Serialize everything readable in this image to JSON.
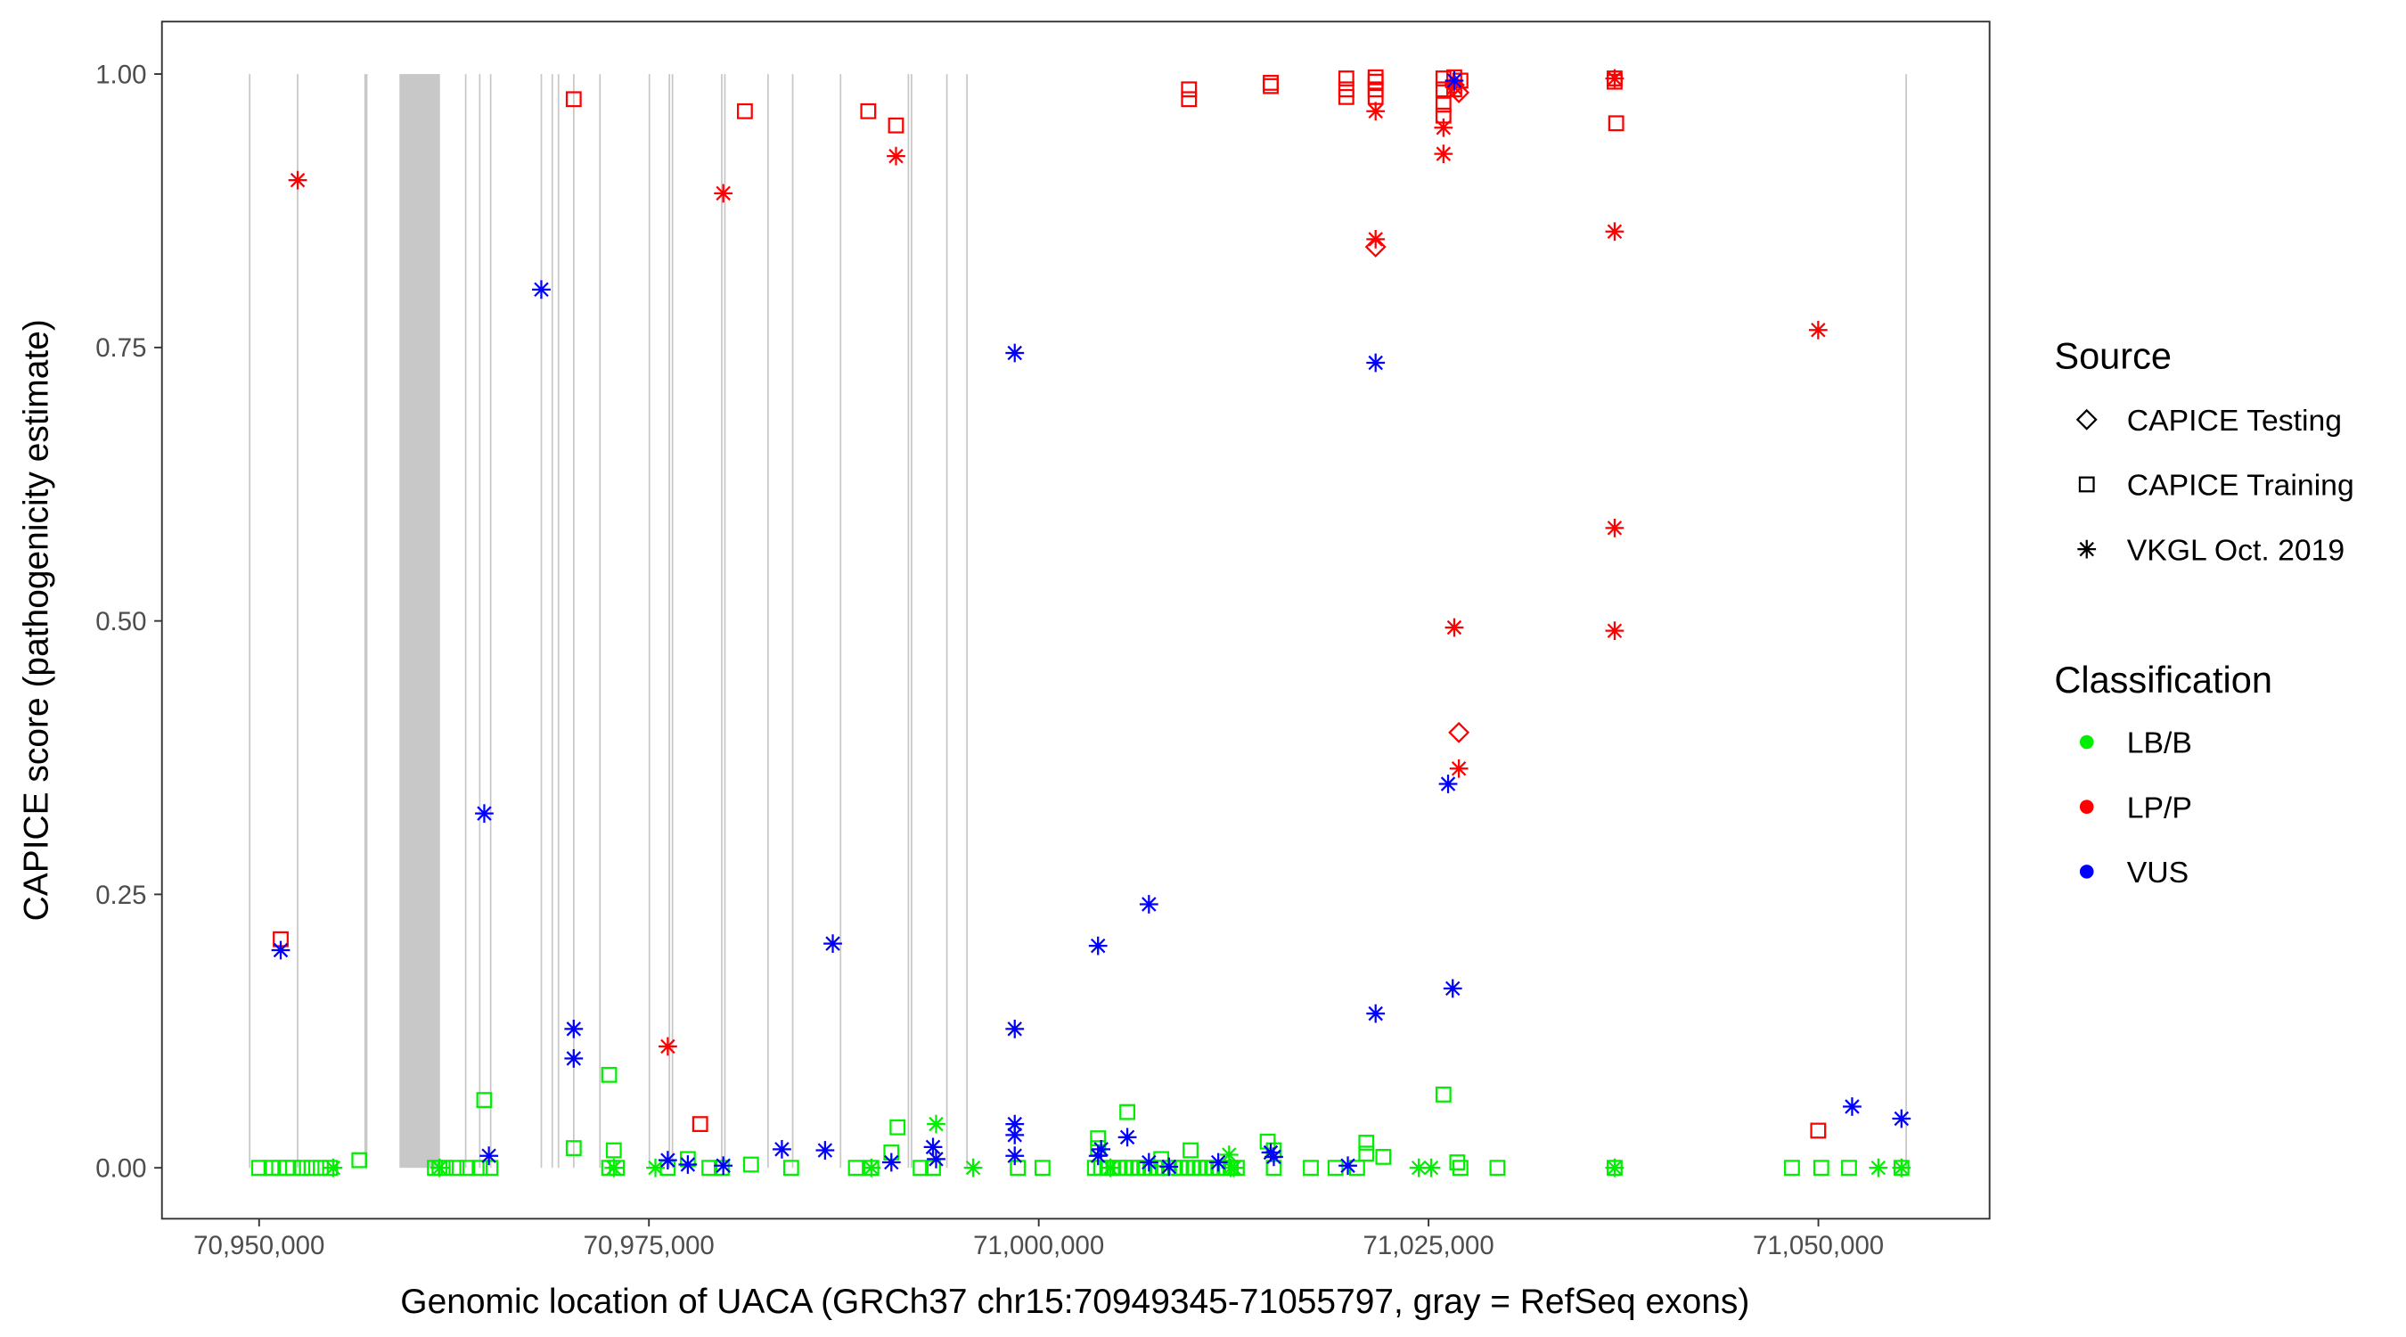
{
  "chart_data": {
    "type": "scatter",
    "xlabel": "Genomic location of UACA (GRCh37 chr15:70949345-71055797, gray = RefSeq exons)",
    "ylabel": "CAPICE score (pathogenicity estimate)",
    "xlim": [
      70943700,
      71061000
    ],
    "ylim": [
      -0.046,
      1.05
    ],
    "x_ticks": [
      70950000,
      70975000,
      71000000,
      71025000,
      71050000
    ],
    "x_tick_labels": [
      "70,950,000",
      "70,975,000",
      "71,000,000",
      "71,025,000",
      "71,050,000"
    ],
    "y_ticks": [
      0,
      0.25,
      0.5,
      0.75,
      1.0
    ],
    "y_tick_labels": [
      "0.00",
      "0.25",
      "0.50",
      "0.75",
      "1.00"
    ],
    "grid": false,
    "legend_placement": "right",
    "legend": {
      "source_title": "Source",
      "sources": [
        {
          "code": "T",
          "label": "CAPICE Testing",
          "shape": "diamond"
        },
        {
          "code": "R",
          "label": "CAPICE Training",
          "shape": "square"
        },
        {
          "code": "V",
          "label": "VKGL Oct. 2019",
          "shape": "asterisk"
        }
      ],
      "class_title": "Classification",
      "classes": [
        {
          "code": "B",
          "label": "LB/B",
          "color": "#00ee00"
        },
        {
          "code": "P",
          "label": "LP/P",
          "color": "#ff0000"
        },
        {
          "code": "U",
          "label": "VUS",
          "color": "#0000ff"
        }
      ]
    },
    "exons": [
      [
        70949345,
        70949445
      ],
      [
        70952420,
        70952520
      ],
      [
        70956750,
        70956950
      ],
      [
        70959000,
        70961600
      ],
      [
        70963200,
        70963300
      ],
      [
        70964100,
        70964200
      ],
      [
        70964800,
        70964900
      ],
      [
        70968050,
        70968150
      ],
      [
        70968750,
        70968850
      ],
      [
        70969150,
        70969250
      ],
      [
        70970130,
        70970230
      ],
      [
        70971810,
        70971910
      ],
      [
        70974980,
        70975080
      ],
      [
        70976260,
        70976360
      ],
      [
        70976460,
        70976560
      ],
      [
        70979620,
        70979720
      ],
      [
        70979820,
        70979920
      ],
      [
        70982590,
        70982690
      ],
      [
        70984170,
        70984270
      ],
      [
        70987240,
        70987340
      ],
      [
        70991590,
        70991690
      ],
      [
        70991790,
        70991890
      ],
      [
        70994060,
        70994160
      ],
      [
        70995350,
        70995450
      ],
      [
        71055580,
        71055680
      ]
    ],
    "points": [
      [
        70950000,
        0,
        "R",
        "B"
      ],
      [
        70950791,
        0,
        "R",
        "B"
      ],
      [
        70951286,
        0,
        "R",
        "B"
      ],
      [
        70951780,
        0,
        "R",
        "B"
      ],
      [
        70952176,
        0,
        "R",
        "B"
      ],
      [
        70952769,
        0,
        "R",
        "B"
      ],
      [
        70953363,
        0,
        "R",
        "B"
      ],
      [
        70953956,
        0,
        "R",
        "B"
      ],
      [
        70954549,
        0,
        "R",
        "B"
      ],
      [
        70954747,
        0,
        "V",
        "B"
      ],
      [
        70956429,
        0.007,
        "R",
        "B"
      ],
      [
        70961275,
        0,
        "R",
        "B"
      ],
      [
        70961571,
        0,
        "R",
        "B"
      ],
      [
        70961571,
        0,
        "V",
        "B"
      ],
      [
        70961967,
        0,
        "R",
        "B"
      ],
      [
        70962659,
        0,
        "R",
        "B"
      ],
      [
        70963352,
        0,
        "R",
        "B"
      ],
      [
        70964143,
        0,
        "R",
        "B"
      ],
      [
        70964835,
        0,
        "R",
        "B"
      ],
      [
        70964440,
        0.062,
        "R",
        "B"
      ],
      [
        70970176,
        0.018,
        "R",
        "B"
      ],
      [
        70972450,
        0.085,
        "R",
        "B"
      ],
      [
        70972747,
        0.016,
        "R",
        "B"
      ],
      [
        70972450,
        0,
        "R",
        "B"
      ],
      [
        70972945,
        0,
        "R",
        "B"
      ],
      [
        70972747,
        0,
        "V",
        "B"
      ],
      [
        70975417,
        0,
        "V",
        "B"
      ],
      [
        70976209,
        0,
        "R",
        "B"
      ],
      [
        70977494,
        0.008,
        "R",
        "B"
      ],
      [
        70978879,
        0,
        "R",
        "B"
      ],
      [
        70979670,
        0,
        "R",
        "B"
      ],
      [
        70981549,
        0.003,
        "R",
        "B"
      ],
      [
        70984121,
        0,
        "R",
        "B"
      ],
      [
        70988274,
        0,
        "R",
        "B"
      ],
      [
        70989263,
        0,
        "R",
        "B"
      ],
      [
        70989263,
        0,
        "V",
        "B"
      ],
      [
        70990549,
        0.014,
        "R",
        "B"
      ],
      [
        70990945,
        0.037,
        "R",
        "B"
      ],
      [
        70993417,
        0.04,
        "V",
        "B"
      ],
      [
        70995791,
        0,
        "V",
        "B"
      ],
      [
        70992428,
        0,
        "R",
        "B"
      ],
      [
        70993219,
        0,
        "R",
        "B"
      ],
      [
        70998659,
        0,
        "R",
        "B"
      ],
      [
        71000241,
        0,
        "R",
        "B"
      ],
      [
        71003604,
        0,
        "R",
        "B"
      ],
      [
        71004000,
        0,
        "R",
        "B"
      ],
      [
        71004396,
        0,
        "R",
        "B"
      ],
      [
        71004791,
        0,
        "R",
        "B"
      ],
      [
        71005187,
        0,
        "R",
        "B"
      ],
      [
        71005582,
        0,
        "R",
        "B"
      ],
      [
        71005978,
        0,
        "R",
        "B"
      ],
      [
        71006374,
        0,
        "R",
        "B"
      ],
      [
        71006769,
        0,
        "R",
        "B"
      ],
      [
        71007165,
        0,
        "R",
        "B"
      ],
      [
        71007560,
        0,
        "R",
        "B"
      ],
      [
        71007956,
        0,
        "R",
        "B"
      ],
      [
        71008352,
        0,
        "R",
        "B"
      ],
      [
        71008747,
        0,
        "R",
        "B"
      ],
      [
        71009143,
        0,
        "R",
        "B"
      ],
      [
        71009538,
        0,
        "R",
        "B"
      ],
      [
        71009934,
        0,
        "R",
        "B"
      ],
      [
        71010330,
        0,
        "R",
        "B"
      ],
      [
        71010725,
        0,
        "R",
        "B"
      ],
      [
        71011121,
        0,
        "R",
        "B"
      ],
      [
        71011516,
        0,
        "R",
        "B"
      ],
      [
        71011912,
        0,
        "R",
        "B"
      ],
      [
        71012308,
        0,
        "R",
        "B"
      ],
      [
        71012703,
        0,
        "R",
        "B"
      ],
      [
        71003802,
        0.027,
        "R",
        "B"
      ],
      [
        71003802,
        0.018,
        "R",
        "B"
      ],
      [
        71005681,
        0.051,
        "R",
        "B"
      ],
      [
        71009736,
        0.016,
        "R",
        "B"
      ],
      [
        71007858,
        0.008,
        "R",
        "B"
      ],
      [
        71004593,
        0,
        "V",
        "B"
      ],
      [
        71012308,
        0,
        "V",
        "B"
      ],
      [
        71012505,
        0,
        "V",
        "B"
      ],
      [
        71012209,
        0.012,
        "V",
        "B"
      ],
      [
        71014681,
        0.024,
        "R",
        "B"
      ],
      [
        71015076,
        0.016,
        "R",
        "B"
      ],
      [
        71015076,
        0,
        "R",
        "B"
      ],
      [
        71017450,
        0,
        "R",
        "B"
      ],
      [
        71019032,
        0,
        "R",
        "B"
      ],
      [
        71021010,
        0.023,
        "R",
        "B"
      ],
      [
        71021010,
        0.013,
        "R",
        "B"
      ],
      [
        71022098,
        0.01,
        "R",
        "B"
      ],
      [
        71020417,
        0,
        "R",
        "B"
      ],
      [
        71024373,
        0,
        "V",
        "B"
      ],
      [
        71025164,
        0,
        "V",
        "B"
      ],
      [
        71025955,
        0.067,
        "R",
        "B"
      ],
      [
        71026845,
        0.005,
        "R",
        "B"
      ],
      [
        71027043,
        0,
        "R",
        "B"
      ],
      [
        71029417,
        0,
        "R",
        "B"
      ],
      [
        71036933,
        0,
        "V",
        "B"
      ],
      [
        71036933,
        0,
        "R",
        "B"
      ],
      [
        71048307,
        0,
        "R",
        "B"
      ],
      [
        71050186,
        0,
        "R",
        "B"
      ],
      [
        71051966,
        0,
        "R",
        "B"
      ],
      [
        71053845,
        0,
        "V",
        "B"
      ],
      [
        71055329,
        0,
        "R",
        "B"
      ],
      [
        71055329,
        0,
        "V",
        "B"
      ],
      [
        70952473,
        0.903,
        "V",
        "P"
      ],
      [
        70951385,
        0.209,
        "R",
        "P"
      ],
      [
        70970176,
        0.977,
        "R",
        "P"
      ],
      [
        70976209,
        0.111,
        "V",
        "P"
      ],
      [
        70978285,
        0.04,
        "R",
        "P"
      ],
      [
        70979769,
        0.891,
        "V",
        "P"
      ],
      [
        70981154,
        0.966,
        "R",
        "P"
      ],
      [
        70989066,
        0.966,
        "R",
        "P"
      ],
      [
        70990846,
        0.953,
        "R",
        "P"
      ],
      [
        70990846,
        0.925,
        "V",
        "P"
      ],
      [
        71009637,
        0.986,
        "R",
        "P"
      ],
      [
        71009637,
        0.977,
        "R",
        "P"
      ],
      [
        71014878,
        0.992,
        "R",
        "P"
      ],
      [
        71014878,
        0.989,
        "R",
        "P"
      ],
      [
        71019725,
        0.996,
        "R",
        "P"
      ],
      [
        71019725,
        0.986,
        "R",
        "P"
      ],
      [
        71019725,
        0.979,
        "R",
        "P"
      ],
      [
        71021604,
        0.997,
        "R",
        "P"
      ],
      [
        71021604,
        0.993,
        "R",
        "P"
      ],
      [
        71021604,
        0.986,
        "R",
        "P"
      ],
      [
        71021604,
        0.979,
        "R",
        "P"
      ],
      [
        71021604,
        0.966,
        "V",
        "P"
      ],
      [
        71021604,
        0.849,
        "V",
        "P"
      ],
      [
        71021604,
        0.842,
        "T",
        "P"
      ],
      [
        71025955,
        0.996,
        "R",
        "P"
      ],
      [
        71025955,
        0.986,
        "R",
        "P"
      ],
      [
        71025955,
        0.972,
        "R",
        "P"
      ],
      [
        71025955,
        0.962,
        "R",
        "P"
      ],
      [
        71025955,
        0.951,
        "V",
        "P"
      ],
      [
        71025955,
        0.927,
        "V",
        "P"
      ],
      [
        71026648,
        0.997,
        "R",
        "P"
      ],
      [
        71026648,
        0.986,
        "R",
        "P"
      ],
      [
        71026648,
        0.99,
        "T",
        "P"
      ],
      [
        71026944,
        0.983,
        "T",
        "P"
      ],
      [
        71026648,
        0.988,
        "V",
        "P"
      ],
      [
        71027043,
        0.994,
        "R",
        "P"
      ],
      [
        71026648,
        0.494,
        "V",
        "P"
      ],
      [
        71026944,
        0.398,
        "T",
        "P"
      ],
      [
        71026944,
        0.365,
        "V",
        "P"
      ],
      [
        71036933,
        0.996,
        "R",
        "P"
      ],
      [
        71036933,
        0.993,
        "R",
        "P"
      ],
      [
        71037032,
        0.955,
        "R",
        "P"
      ],
      [
        71036933,
        0.996,
        "V",
        "P"
      ],
      [
        71036933,
        0.856,
        "V",
        "P"
      ],
      [
        71036933,
        0.585,
        "V",
        "P"
      ],
      [
        71036933,
        0.491,
        "V",
        "P"
      ],
      [
        71049988,
        0.766,
        "V",
        "P"
      ],
      [
        71049988,
        0.034,
        "R",
        "P"
      ],
      [
        70951385,
        0.199,
        "V",
        "U"
      ],
      [
        70964440,
        0.324,
        "V",
        "U"
      ],
      [
        70964736,
        0.011,
        "V",
        "U"
      ],
      [
        70968099,
        0.803,
        "V",
        "U"
      ],
      [
        70970176,
        0.127,
        "V",
        "U"
      ],
      [
        70970176,
        0.1,
        "V",
        "U"
      ],
      [
        70976209,
        0.007,
        "V",
        "U"
      ],
      [
        70977494,
        0.003,
        "V",
        "U"
      ],
      [
        70979769,
        0.002,
        "V",
        "U"
      ],
      [
        70983527,
        0.017,
        "V",
        "U"
      ],
      [
        70986296,
        0.016,
        "V",
        "U"
      ],
      [
        70986791,
        0.205,
        "V",
        "U"
      ],
      [
        70990549,
        0.005,
        "V",
        "U"
      ],
      [
        70993219,
        0.019,
        "V",
        "U"
      ],
      [
        70993417,
        0.008,
        "V",
        "U"
      ],
      [
        70998461,
        0.745,
        "V",
        "U"
      ],
      [
        70998461,
        0.127,
        "V",
        "U"
      ],
      [
        70998461,
        0.04,
        "V",
        "U"
      ],
      [
        70998461,
        0.03,
        "V",
        "U"
      ],
      [
        70998461,
        0.011,
        "V",
        "U"
      ],
      [
        71003802,
        0.203,
        "V",
        "U"
      ],
      [
        71003802,
        0.011,
        "V",
        "U"
      ],
      [
        71004000,
        0.017,
        "V",
        "U"
      ],
      [
        71005681,
        0.028,
        "V",
        "U"
      ],
      [
        71007066,
        0.241,
        "V",
        "U"
      ],
      [
        71007066,
        0.005,
        "V",
        "U"
      ],
      [
        71008351,
        0.001,
        "V",
        "U"
      ],
      [
        71011516,
        0.005,
        "V",
        "U"
      ],
      [
        71014878,
        0.014,
        "V",
        "U"
      ],
      [
        71015076,
        0.01,
        "V",
        "U"
      ],
      [
        71019824,
        0.002,
        "V",
        "U"
      ],
      [
        71021604,
        0.736,
        "V",
        "U"
      ],
      [
        71021604,
        0.141,
        "V",
        "U"
      ],
      [
        71026253,
        0.351,
        "V",
        "U"
      ],
      [
        71026550,
        0.164,
        "V",
        "U"
      ],
      [
        71026648,
        0.994,
        "V",
        "U"
      ],
      [
        71052164,
        0.056,
        "V",
        "U"
      ],
      [
        71055329,
        0.045,
        "V",
        "U"
      ]
    ]
  }
}
